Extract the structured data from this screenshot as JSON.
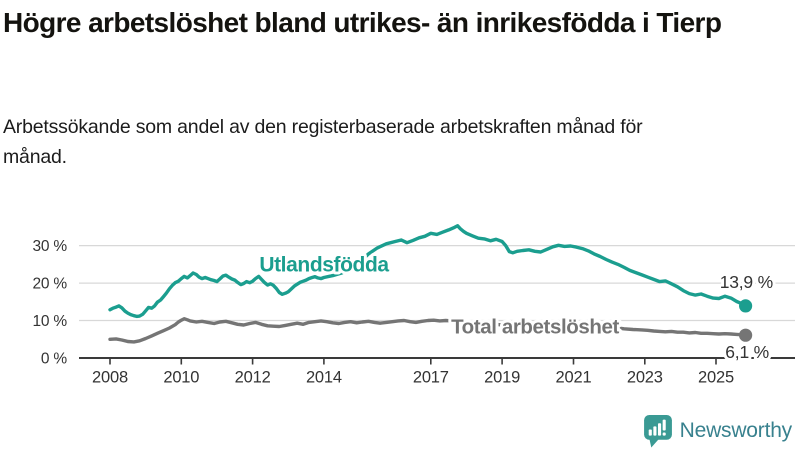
{
  "title": "Högre arbetslöshet bland utrikes- än inrikesfödda i Tierp",
  "subtitle": "Arbetssökande som andel av den registerbaserade arbetskraften månad för månad.",
  "footer": {
    "brand": "Newsworthy"
  },
  "colors": {
    "utlandsfodda_line": "#1b9e8f",
    "total_line": "#757575",
    "axis": "#3a3a3a",
    "gridline": "#d8d8d8",
    "logo_bubble": "#3a9a94",
    "brand_text": "#38818e"
  },
  "chart_data": {
    "type": "line",
    "title": "Högre arbetslöshet bland utrikes- än inrikesfödda i Tierp",
    "xlabel": "",
    "ylabel": "",
    "grid": true,
    "legend_position": "inline",
    "x_axis": {
      "ticks": [
        2008,
        2010,
        2012,
        2014,
        2017,
        2019,
        2021,
        2023,
        2025
      ],
      "labels": [
        "2008",
        "2010",
        "2012",
        "2014",
        "2017",
        "2019",
        "2021",
        "2023",
        "2025"
      ],
      "range": [
        2007.1,
        2026.2
      ]
    },
    "y_axis": {
      "ticks": [
        0,
        10,
        20,
        30
      ],
      "labels": [
        "0 %",
        "10 %",
        "20 %",
        "30 %"
      ],
      "range": [
        0,
        38
      ]
    },
    "series": [
      {
        "name": "Utlandsfödda",
        "color": "#1b9e8f",
        "end_label": "13,9 %",
        "end_value": 13.9,
        "points": [
          [
            2008.0,
            12.9
          ],
          [
            2008.08,
            13.3
          ],
          [
            2008.17,
            13.6
          ],
          [
            2008.25,
            13.9
          ],
          [
            2008.33,
            13.4
          ],
          [
            2008.42,
            12.5
          ],
          [
            2008.5,
            12.0
          ],
          [
            2008.58,
            11.6
          ],
          [
            2008.67,
            11.3
          ],
          [
            2008.75,
            11.1
          ],
          [
            2008.83,
            11.2
          ],
          [
            2008.92,
            11.7
          ],
          [
            2009.0,
            12.6
          ],
          [
            2009.08,
            13.5
          ],
          [
            2009.17,
            13.3
          ],
          [
            2009.25,
            13.9
          ],
          [
            2009.33,
            14.9
          ],
          [
            2009.42,
            15.5
          ],
          [
            2009.5,
            16.4
          ],
          [
            2009.58,
            17.3
          ],
          [
            2009.67,
            18.5
          ],
          [
            2009.75,
            19.4
          ],
          [
            2009.83,
            20.1
          ],
          [
            2009.92,
            20.5
          ],
          [
            2010.0,
            21.2
          ],
          [
            2010.08,
            21.8
          ],
          [
            2010.17,
            21.4
          ],
          [
            2010.25,
            22.0
          ],
          [
            2010.33,
            22.7
          ],
          [
            2010.42,
            22.3
          ],
          [
            2010.5,
            21.6
          ],
          [
            2010.58,
            21.2
          ],
          [
            2010.67,
            21.5
          ],
          [
            2010.75,
            21.2
          ],
          [
            2010.83,
            20.9
          ],
          [
            2010.92,
            20.7
          ],
          [
            2011.0,
            20.4
          ],
          [
            2011.08,
            21.1
          ],
          [
            2011.17,
            21.9
          ],
          [
            2011.25,
            22.1
          ],
          [
            2011.33,
            21.6
          ],
          [
            2011.42,
            21.1
          ],
          [
            2011.5,
            20.8
          ],
          [
            2011.58,
            20.2
          ],
          [
            2011.67,
            19.6
          ],
          [
            2011.75,
            19.9
          ],
          [
            2011.83,
            20.4
          ],
          [
            2011.92,
            20.1
          ],
          [
            2012.0,
            20.5
          ],
          [
            2012.08,
            21.2
          ],
          [
            2012.17,
            21.8
          ],
          [
            2012.25,
            21.0
          ],
          [
            2012.33,
            20.2
          ],
          [
            2012.42,
            19.5
          ],
          [
            2012.5,
            19.8
          ],
          [
            2012.58,
            19.4
          ],
          [
            2012.67,
            18.5
          ],
          [
            2012.75,
            17.5
          ],
          [
            2012.83,
            17.0
          ],
          [
            2012.92,
            17.3
          ],
          [
            2013.0,
            17.7
          ],
          [
            2013.08,
            18.4
          ],
          [
            2013.17,
            19.2
          ],
          [
            2013.25,
            19.7
          ],
          [
            2013.33,
            20.2
          ],
          [
            2013.42,
            20.5
          ],
          [
            2013.5,
            20.8
          ],
          [
            2013.58,
            21.2
          ],
          [
            2013.67,
            21.5
          ],
          [
            2013.75,
            21.7
          ],
          [
            2013.83,
            21.4
          ],
          [
            2013.92,
            21.2
          ],
          [
            2014.0,
            21.5
          ],
          [
            2014.25,
            22.0
          ],
          [
            2014.5,
            22.7
          ],
          [
            2014.75,
            23.9
          ],
          [
            2015.0,
            25.5
          ],
          [
            2015.25,
            27.8
          ],
          [
            2015.5,
            29.4
          ],
          [
            2015.75,
            30.5
          ],
          [
            2016.0,
            31.1
          ],
          [
            2016.17,
            31.5
          ],
          [
            2016.33,
            30.8
          ],
          [
            2016.5,
            31.4
          ],
          [
            2016.67,
            32.1
          ],
          [
            2016.83,
            32.5
          ],
          [
            2017.0,
            33.3
          ],
          [
            2017.17,
            33.0
          ],
          [
            2017.33,
            33.6
          ],
          [
            2017.5,
            34.2
          ],
          [
            2017.67,
            34.9
          ],
          [
            2017.75,
            35.3
          ],
          [
            2017.83,
            34.5
          ],
          [
            2017.92,
            33.8
          ],
          [
            2018.0,
            33.3
          ],
          [
            2018.17,
            32.6
          ],
          [
            2018.33,
            32.0
          ],
          [
            2018.5,
            31.8
          ],
          [
            2018.67,
            31.3
          ],
          [
            2018.83,
            31.7
          ],
          [
            2019.0,
            31.1
          ],
          [
            2019.1,
            30.0
          ],
          [
            2019.2,
            28.4
          ],
          [
            2019.3,
            28.1
          ],
          [
            2019.42,
            28.5
          ],
          [
            2019.58,
            28.7
          ],
          [
            2019.75,
            28.9
          ],
          [
            2019.92,
            28.5
          ],
          [
            2020.08,
            28.3
          ],
          [
            2020.25,
            29.0
          ],
          [
            2020.42,
            29.7
          ],
          [
            2020.58,
            30.1
          ],
          [
            2020.75,
            29.8
          ],
          [
            2020.92,
            29.9
          ],
          [
            2021.08,
            29.6
          ],
          [
            2021.25,
            29.2
          ],
          [
            2021.42,
            28.6
          ],
          [
            2021.58,
            27.8
          ],
          [
            2021.75,
            27.1
          ],
          [
            2021.92,
            26.3
          ],
          [
            2022.08,
            25.6
          ],
          [
            2022.25,
            25.0
          ],
          [
            2022.42,
            24.2
          ],
          [
            2022.58,
            23.4
          ],
          [
            2022.75,
            22.8
          ],
          [
            2022.92,
            22.2
          ],
          [
            2023.08,
            21.6
          ],
          [
            2023.25,
            21.0
          ],
          [
            2023.42,
            20.4
          ],
          [
            2023.58,
            20.6
          ],
          [
            2023.75,
            19.8
          ],
          [
            2023.92,
            19.0
          ],
          [
            2024.08,
            18.0
          ],
          [
            2024.25,
            17.2
          ],
          [
            2024.42,
            16.8
          ],
          [
            2024.58,
            17.1
          ],
          [
            2024.75,
            16.5
          ],
          [
            2024.92,
            16.0
          ],
          [
            2025.08,
            15.9
          ],
          [
            2025.25,
            16.5
          ],
          [
            2025.42,
            16.0
          ],
          [
            2025.58,
            15.1
          ],
          [
            2025.75,
            14.4
          ],
          [
            2025.83,
            13.9
          ]
        ]
      },
      {
        "name": "Total arbetslöshet",
        "color": "#757575",
        "end_label": "6,1 %",
        "end_value": 6.1,
        "points": [
          [
            2008.0,
            5.0
          ],
          [
            2008.17,
            5.1
          ],
          [
            2008.33,
            4.8
          ],
          [
            2008.5,
            4.4
          ],
          [
            2008.67,
            4.3
          ],
          [
            2008.83,
            4.6
          ],
          [
            2009.0,
            5.2
          ],
          [
            2009.17,
            5.9
          ],
          [
            2009.33,
            6.6
          ],
          [
            2009.5,
            7.3
          ],
          [
            2009.67,
            8.0
          ],
          [
            2009.83,
            8.9
          ],
          [
            2009.92,
            9.6
          ],
          [
            2010.0,
            10.1
          ],
          [
            2010.08,
            10.5
          ],
          [
            2010.17,
            10.2
          ],
          [
            2010.25,
            9.9
          ],
          [
            2010.42,
            9.6
          ],
          [
            2010.58,
            9.8
          ],
          [
            2010.75,
            9.5
          ],
          [
            2010.92,
            9.2
          ],
          [
            2011.08,
            9.6
          ],
          [
            2011.25,
            9.8
          ],
          [
            2011.42,
            9.4
          ],
          [
            2011.58,
            9.0
          ],
          [
            2011.75,
            8.8
          ],
          [
            2011.92,
            9.2
          ],
          [
            2012.08,
            9.5
          ],
          [
            2012.25,
            9.0
          ],
          [
            2012.42,
            8.6
          ],
          [
            2012.58,
            8.5
          ],
          [
            2012.75,
            8.4
          ],
          [
            2012.92,
            8.7
          ],
          [
            2013.08,
            9.0
          ],
          [
            2013.25,
            9.3
          ],
          [
            2013.42,
            9.0
          ],
          [
            2013.58,
            9.5
          ],
          [
            2013.75,
            9.7
          ],
          [
            2013.92,
            9.9
          ],
          [
            2014.08,
            9.7
          ],
          [
            2014.25,
            9.4
          ],
          [
            2014.42,
            9.2
          ],
          [
            2014.58,
            9.5
          ],
          [
            2014.75,
            9.7
          ],
          [
            2014.92,
            9.4
          ],
          [
            2015.08,
            9.6
          ],
          [
            2015.25,
            9.8
          ],
          [
            2015.42,
            9.5
          ],
          [
            2015.58,
            9.3
          ],
          [
            2015.75,
            9.5
          ],
          [
            2015.92,
            9.7
          ],
          [
            2016.08,
            9.9
          ],
          [
            2016.25,
            10.0
          ],
          [
            2016.42,
            9.7
          ],
          [
            2016.58,
            9.5
          ],
          [
            2016.75,
            9.8
          ],
          [
            2016.92,
            10.0
          ],
          [
            2017.08,
            10.1
          ],
          [
            2017.25,
            9.9
          ],
          [
            2017.42,
            10.0
          ],
          [
            2017.58,
            9.9
          ],
          [
            2017.75,
            9.7
          ],
          [
            2017.92,
            9.6
          ],
          [
            2018.17,
            9.5
          ],
          [
            2018.42,
            9.3
          ],
          [
            2018.67,
            9.1
          ],
          [
            2018.92,
            8.9
          ],
          [
            2019.17,
            8.7
          ],
          [
            2019.42,
            8.6
          ],
          [
            2019.67,
            8.5
          ],
          [
            2019.92,
            8.7
          ],
          [
            2020.17,
            9.1
          ],
          [
            2020.42,
            9.5
          ],
          [
            2020.58,
            9.7
          ],
          [
            2020.75,
            9.5
          ],
          [
            2020.92,
            9.4
          ],
          [
            2021.17,
            9.2
          ],
          [
            2021.42,
            8.9
          ],
          [
            2021.67,
            8.6
          ],
          [
            2021.92,
            8.4
          ],
          [
            2022.17,
            8.1
          ],
          [
            2022.42,
            7.8
          ],
          [
            2022.67,
            7.6
          ],
          [
            2022.92,
            7.5
          ],
          [
            2023.08,
            7.4
          ],
          [
            2023.25,
            7.2
          ],
          [
            2023.42,
            7.1
          ],
          [
            2023.58,
            7.0
          ],
          [
            2023.75,
            7.1
          ],
          [
            2023.92,
            6.9
          ],
          [
            2024.08,
            6.9
          ],
          [
            2024.25,
            6.7
          ],
          [
            2024.42,
            6.8
          ],
          [
            2024.58,
            6.6
          ],
          [
            2024.75,
            6.6
          ],
          [
            2024.92,
            6.5
          ],
          [
            2025.08,
            6.4
          ],
          [
            2025.25,
            6.5
          ],
          [
            2025.42,
            6.4
          ],
          [
            2025.58,
            6.3
          ],
          [
            2025.75,
            6.2
          ],
          [
            2025.83,
            6.1
          ]
        ]
      }
    ]
  }
}
